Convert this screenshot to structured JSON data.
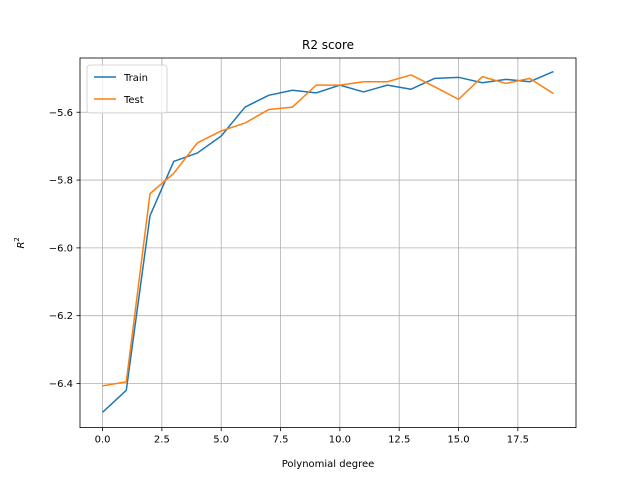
{
  "chart_data": {
    "type": "line",
    "title": "R2 score",
    "xlabel": "Polynomial degree",
    "ylabel_main": "R",
    "ylabel_sup": "2",
    "xlim": [
      -0.95,
      19.95
    ],
    "ylim": [
      -6.53,
      -5.44
    ],
    "xticks": [
      0.0,
      2.5,
      5.0,
      7.5,
      10.0,
      12.5,
      15.0,
      17.5
    ],
    "xtick_labels": [
      "0.0",
      "2.5",
      "5.0",
      "7.5",
      "10.0",
      "12.5",
      "15.0",
      "17.5"
    ],
    "yticks": [
      -6.4,
      -6.2,
      -6.0,
      -5.8,
      -5.6
    ],
    "ytick_labels": [
      "−6.4",
      "−6.2",
      "−6.0",
      "−5.8",
      "−5.6"
    ],
    "grid": true,
    "legend_position": "top-left",
    "x": [
      0,
      1,
      2,
      3,
      4,
      5,
      6,
      7,
      8,
      9,
      10,
      11,
      12,
      13,
      14,
      15,
      16,
      17,
      18,
      19
    ],
    "series": [
      {
        "name": "Train",
        "color": "#1f77b4",
        "values": [
          -6.485,
          -6.42,
          -5.905,
          -5.745,
          -5.72,
          -5.67,
          -5.585,
          -5.55,
          -5.535,
          -5.543,
          -5.52,
          -5.54,
          -5.52,
          -5.532,
          -5.5,
          -5.497,
          -5.513,
          -5.503,
          -5.51,
          -5.48
        ]
      },
      {
        "name": "Test",
        "color": "#ff7f0e",
        "values": [
          -6.407,
          -6.395,
          -5.84,
          -5.78,
          -5.69,
          -5.655,
          -5.632,
          -5.592,
          -5.585,
          -5.52,
          -5.52,
          -5.51,
          -5.51,
          -5.49,
          -5.525,
          -5.562,
          -5.495,
          -5.515,
          -5.5,
          -5.545
        ]
      }
    ]
  }
}
